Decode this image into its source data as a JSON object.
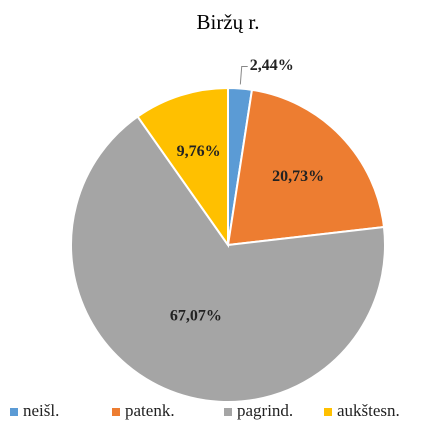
{
  "chart_data": {
    "type": "pie",
    "title": "Biržų r.",
    "categories": [
      "neišl.",
      "patenk.",
      "pagrind.",
      "aukštesn."
    ],
    "values": [
      2.44,
      20.73,
      67.07,
      9.76
    ],
    "value_labels": [
      "2,44%",
      "20,73%",
      "67,07%",
      "9,76%"
    ],
    "colors": [
      "#5b9bd5",
      "#ed7d31",
      "#a5a5a5",
      "#ffc000"
    ],
    "legend": "bottom"
  }
}
